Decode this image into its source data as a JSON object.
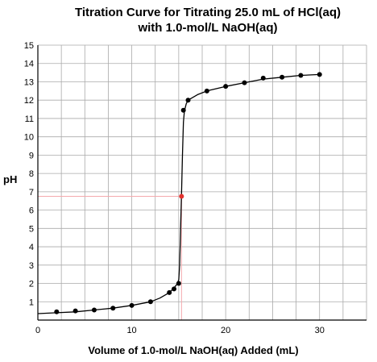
{
  "chart_data": {
    "type": "scatter",
    "title_lines": [
      "Titration Curve for Titrating 25.0 mL of HCl(aq)",
      "with 1.0-mol/L NaOH(aq)"
    ],
    "xlabel": "Volume of 1.0-mol/L NaOH(aq) Added (mL)",
    "ylabel": "pH",
    "xlim": [
      0,
      35
    ],
    "ylim": [
      0,
      15
    ],
    "x_ticks": [
      0,
      10,
      20,
      30
    ],
    "y_ticks": [
      1,
      2,
      3,
      4,
      5,
      6,
      7,
      8,
      9,
      10,
      11,
      12,
      13,
      14,
      15
    ],
    "grid": true,
    "series": [
      {
        "x": [
          2,
          4,
          6,
          8,
          10,
          12,
          14,
          14.5,
          15,
          15.5,
          16,
          18,
          20,
          22,
          24,
          26,
          28,
          30
        ],
        "y": [
          0.45,
          0.5,
          0.55,
          0.65,
          0.8,
          1.0,
          1.5,
          1.7,
          2.0,
          11.45,
          12.0,
          12.5,
          12.75,
          12.95,
          13.2,
          13.25,
          13.35,
          13.4
        ],
        "color": "#000000"
      }
    ],
    "fit_curve": {
      "x": [
        0,
        2,
        4,
        6,
        8,
        10,
        12,
        13,
        14,
        14.5,
        14.8,
        15,
        15.1,
        15.2,
        15.3,
        15.4,
        15.5,
        15.6,
        15.8,
        16,
        17,
        18,
        20,
        22,
        24,
        26,
        28,
        30
      ],
      "y": [
        0.35,
        0.4,
        0.45,
        0.55,
        0.65,
        0.8,
        1.0,
        1.2,
        1.5,
        1.75,
        1.95,
        2.2,
        3.0,
        5.0,
        7.0,
        9.0,
        10.8,
        11.4,
        11.8,
        12.0,
        12.3,
        12.5,
        12.75,
        12.95,
        13.15,
        13.25,
        13.35,
        13.4
      ],
      "color": "#000000"
    },
    "equivalence_point": {
      "x": 15.3,
      "y": 6.75,
      "color": "#e3342f"
    },
    "guide_line_color": "#f4a9ad",
    "grid_color": "#aaaaaa"
  }
}
